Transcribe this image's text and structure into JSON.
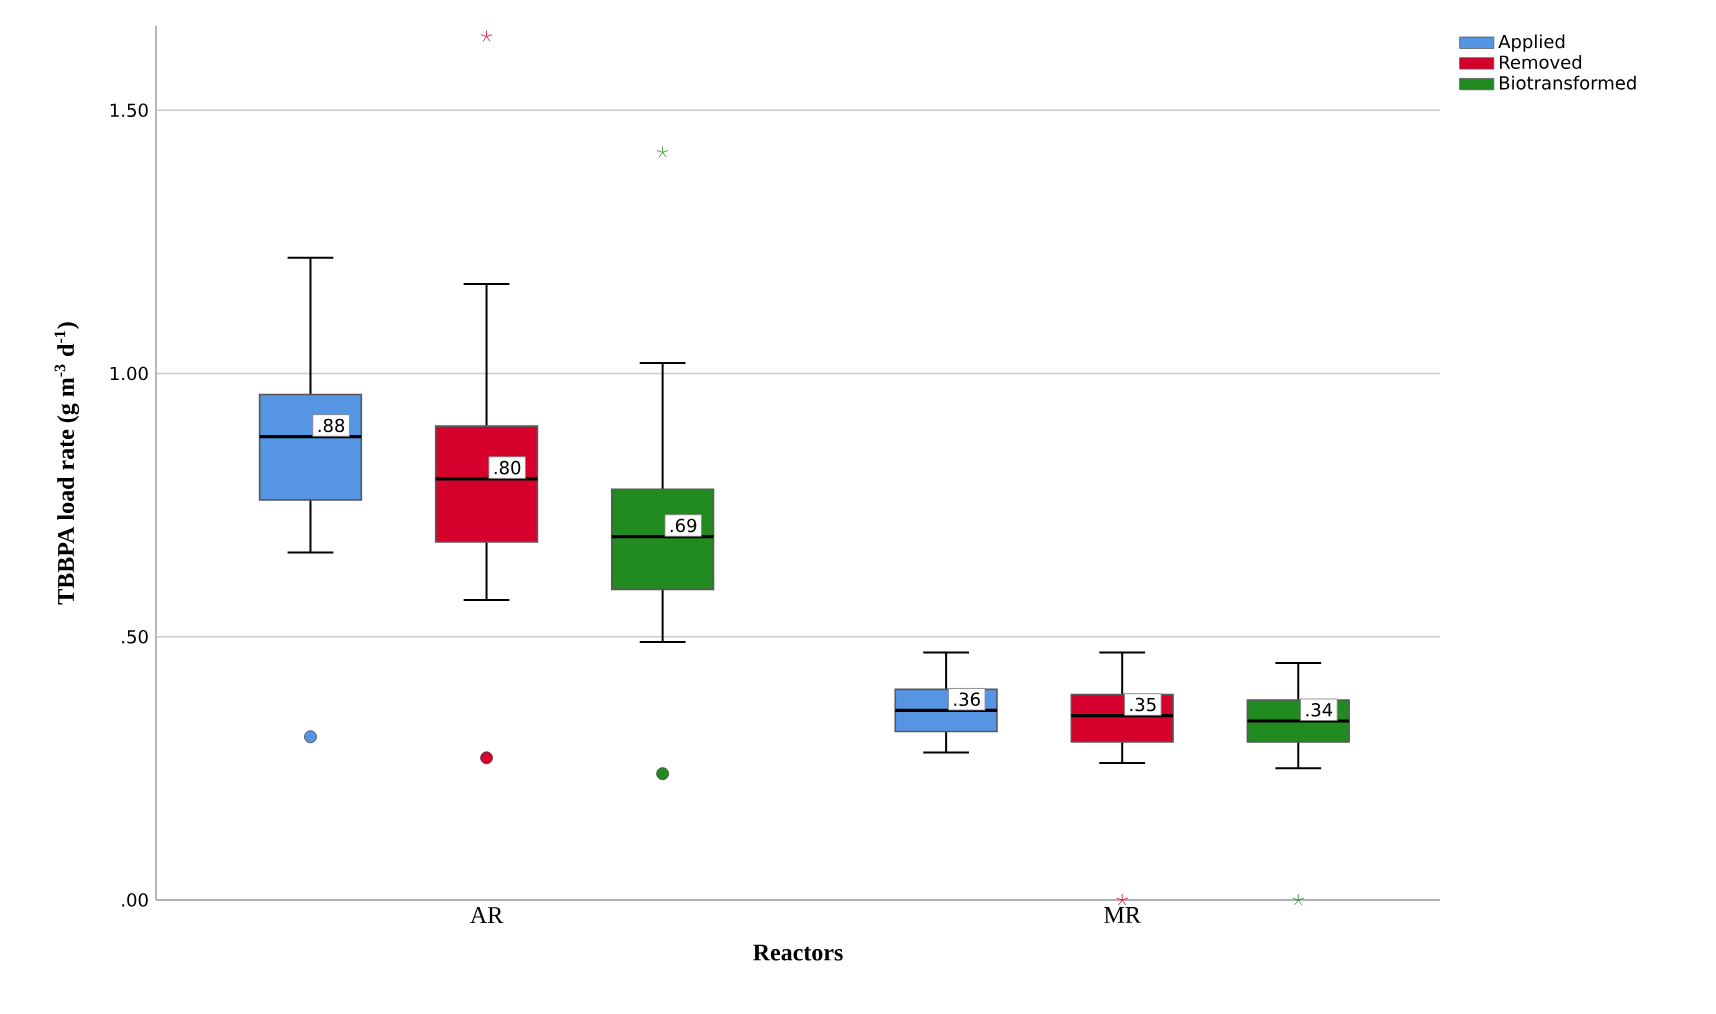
{
  "chart_data": {
    "type": "box",
    "xlabel": "Reactors",
    "ylabel": "TBBPA load rate  (g m$^{-3}$ d$^{-1}$)",
    "categories": [
      "AR",
      "MR"
    ],
    "ylim": [
      0,
      1.66
    ],
    "yticks": [
      {
        "value": 0,
        "label": ".00"
      },
      {
        "value": 0.5,
        "label": ".50"
      },
      {
        "value": 1.0,
        "label": "1.00"
      },
      {
        "value": 1.5,
        "label": "1.50"
      }
    ],
    "grid": "y",
    "legend": "top right",
    "series": [
      {
        "name": "Applied",
        "color": "#5595e3",
        "value_labels": [
          ".88",
          ".36"
        ],
        "boxes": [
          {
            "low": 0.66,
            "q1": 0.76,
            "median": 0.88,
            "q3": 0.96,
            "high": 1.22,
            "outliers": [
              0.31
            ]
          },
          {
            "low": 0.28,
            "q1": 0.32,
            "median": 0.36,
            "q3": 0.4,
            "high": 0.47
          }
        ]
      },
      {
        "name": "Removed",
        "color": "#d6002d",
        "value_labels": [
          ".80",
          ".35"
        ],
        "boxes": [
          {
            "low": 0.57,
            "q1": 0.68,
            "median": 0.8,
            "q3": 0.9,
            "high": 1.17,
            "outliers": [
              0.27,
              1.64
            ]
          },
          {
            "low": 0.26,
            "q1": 0.3,
            "median": 0.35,
            "q3": 0.39,
            "high": 0.47,
            "outliers": [
              0
            ]
          }
        ]
      },
      {
        "name": "Biotransformed",
        "color": "#218a21",
        "value_labels": [
          ".69",
          ".34"
        ],
        "boxes": [
          {
            "low": 0.49,
            "q1": 0.59,
            "median": 0.69,
            "q3": 0.78,
            "high": 1.02,
            "outliers": [
              0.24,
              1.42
            ]
          },
          {
            "low": 0.25,
            "q1": 0.3,
            "median": 0.34,
            "q3": 0.38,
            "high": 0.45,
            "outliers": [
              0
            ]
          }
        ]
      }
    ]
  }
}
